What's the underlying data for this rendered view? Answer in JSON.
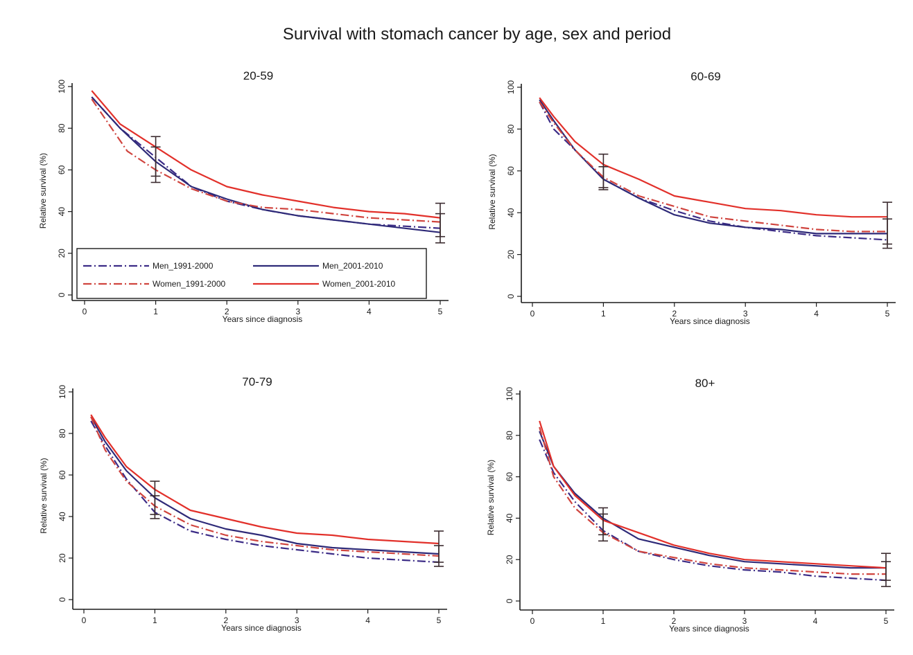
{
  "title": "Survival with stomach cancer by age, sex and period",
  "colors": {
    "men_1991_2000": "#3b2b86",
    "men_2001_2010": "#2e2a78",
    "women_1991_2000": "#d0443e",
    "women_2001_2010": "#e2302a",
    "axis": "#1a1a1a",
    "errorbar": "#3a2a2e"
  },
  "legend": [
    {
      "label": "Men_1991-2000",
      "series": "men_1991_2000",
      "dash": "dashdot"
    },
    {
      "label": "Men_2001-2010",
      "series": "men_2001_2010",
      "dash": "solid"
    },
    {
      "label": "Women_1991-2000",
      "series": "women_1991_2000",
      "dash": "dashdot"
    },
    {
      "label": "Women_2001-2010",
      "series": "women_2001_2010",
      "dash": "solid"
    }
  ],
  "chart_data": [
    {
      "type": "line",
      "title": "20-59",
      "xlabel": "Years since diagnosis",
      "ylabel": "Relative survival (%)",
      "xlim": [
        0,
        5
      ],
      "ylim": [
        0,
        100
      ],
      "xticks": [
        0,
        1,
        2,
        3,
        4,
        5
      ],
      "yticks": [
        0,
        20,
        40,
        60,
        80,
        100
      ],
      "legend_position": "bottom-left",
      "series": [
        {
          "name": "Men_1991-2000",
          "key": "men_1991_2000",
          "x": [
            0.1,
            0.5,
            1,
            1.5,
            2,
            2.5,
            3,
            3.5,
            4,
            4.5,
            5
          ],
          "y": [
            95,
            80,
            66,
            52,
            45,
            41,
            38,
            36,
            34,
            33,
            32
          ]
        },
        {
          "name": "Men_2001-2010",
          "key": "men_2001_2010",
          "x": [
            0.1,
            0.5,
            1,
            1.5,
            2,
            2.5,
            3,
            3.5,
            4,
            4.5,
            5
          ],
          "y": [
            95,
            80,
            64,
            52,
            46,
            41,
            38,
            36,
            34,
            32,
            30
          ]
        },
        {
          "name": "Women_1991-2000",
          "key": "women_1991_2000",
          "x": [
            0.1,
            0.6,
            1,
            1.5,
            2,
            2.5,
            3,
            3.5,
            4,
            4.5,
            5
          ],
          "y": [
            94,
            69,
            60,
            51,
            45,
            42,
            41,
            39,
            37,
            36,
            35
          ]
        },
        {
          "name": "Women_2001-2010",
          "key": "women_2001_2010",
          "x": [
            0.1,
            0.5,
            1,
            1.5,
            2,
            2.5,
            3,
            3.5,
            4,
            4.5,
            5
          ],
          "y": [
            98,
            82,
            71,
            60,
            52,
            48,
            45,
            42,
            40,
            39,
            37
          ]
        }
      ],
      "error_bars": [
        {
          "x": 1,
          "low": 54,
          "high": 76
        },
        {
          "x": 1,
          "low": 57,
          "high": 71
        },
        {
          "x": 5,
          "low": 25,
          "high": 44
        },
        {
          "x": 5,
          "low": 28,
          "high": 39
        }
      ]
    },
    {
      "type": "line",
      "title": "60-69",
      "xlabel": "Years since diagnosis",
      "ylabel": "Relative survival (%)",
      "xlim": [
        0,
        5
      ],
      "ylim": [
        0,
        100
      ],
      "xticks": [
        0,
        1,
        2,
        3,
        4,
        5
      ],
      "yticks": [
        0,
        20,
        40,
        60,
        80,
        100
      ],
      "series": [
        {
          "name": "Men_1991-2000",
          "key": "men_1991_2000",
          "x": [
            0.1,
            0.3,
            0.6,
            1,
            1.5,
            2,
            2.5,
            3,
            3.5,
            4,
            4.5,
            5
          ],
          "y": [
            93,
            80,
            70,
            56,
            47,
            41,
            36,
            33,
            31,
            29,
            28,
            27
          ]
        },
        {
          "name": "Men_2001-2010",
          "key": "men_2001_2010",
          "x": [
            0.1,
            0.3,
            0.6,
            1,
            1.5,
            2,
            2.5,
            3,
            3.5,
            4,
            4.5,
            5
          ],
          "y": [
            94,
            84,
            70,
            56,
            47,
            39,
            35,
            33,
            32,
            30,
            30,
            30
          ]
        },
        {
          "name": "Women_1991-2000",
          "key": "women_1991_2000",
          "x": [
            0.1,
            0.3,
            0.6,
            1,
            1.5,
            2,
            2.5,
            3,
            3.5,
            4,
            4.5,
            5
          ],
          "y": [
            93,
            83,
            70,
            57,
            48,
            43,
            38,
            36,
            34,
            32,
            31,
            31
          ]
        },
        {
          "name": "Women_2001-2010",
          "key": "women_2001_2010",
          "x": [
            0.1,
            0.3,
            0.6,
            1,
            1.5,
            2,
            2.5,
            3,
            3.5,
            4,
            4.5,
            5
          ],
          "y": [
            95,
            86,
            74,
            63,
            56,
            48,
            45,
            42,
            41,
            39,
            38,
            38
          ]
        }
      ],
      "error_bars": [
        {
          "x": 1,
          "low": 51,
          "high": 68
        },
        {
          "x": 1,
          "low": 52,
          "high": 62
        },
        {
          "x": 5,
          "low": 23,
          "high": 45
        },
        {
          "x": 5,
          "low": 25,
          "high": 37
        }
      ]
    },
    {
      "type": "line",
      "title": "70-79",
      "xlabel": "Years since diagnosis",
      "ylabel": "Relative survival (%)",
      "xlim": [
        0,
        5
      ],
      "ylim": [
        0,
        100
      ],
      "xticks": [
        0,
        1,
        2,
        3,
        4,
        5
      ],
      "yticks": [
        0,
        20,
        40,
        60,
        80,
        100
      ],
      "series": [
        {
          "name": "Men_1991-2000",
          "key": "men_1991_2000",
          "x": [
            0.1,
            0.3,
            0.6,
            1,
            1.5,
            2,
            2.5,
            3,
            3.5,
            4,
            4.5,
            5
          ],
          "y": [
            86,
            74,
            58,
            42,
            33,
            29,
            26,
            24,
            22,
            20,
            19,
            18
          ]
        },
        {
          "name": "Men_2001-2010",
          "key": "men_2001_2010",
          "x": [
            0.1,
            0.3,
            0.6,
            1,
            1.5,
            2,
            2.5,
            3,
            3.5,
            4,
            4.5,
            5
          ],
          "y": [
            88,
            76,
            62,
            49,
            39,
            34,
            31,
            27,
            25,
            24,
            23,
            22
          ]
        },
        {
          "name": "Women_1991-2000",
          "key": "women_1991_2000",
          "x": [
            0.1,
            0.3,
            0.6,
            1,
            1.5,
            2,
            2.5,
            3,
            3.5,
            4,
            4.5,
            5
          ],
          "y": [
            88,
            72,
            57,
            45,
            36,
            31,
            28,
            26,
            24,
            23,
            22,
            21
          ]
        },
        {
          "name": "Women_2001-2010",
          "key": "women_2001_2010",
          "x": [
            0.1,
            0.3,
            0.6,
            1,
            1.5,
            2,
            2.5,
            3,
            3.5,
            4,
            4.5,
            5
          ],
          "y": [
            89,
            78,
            64,
            53,
            43,
            39,
            35,
            32,
            31,
            29,
            28,
            27
          ]
        }
      ],
      "error_bars": [
        {
          "x": 1,
          "low": 39,
          "high": 57
        },
        {
          "x": 1,
          "low": 41,
          "high": 50
        },
        {
          "x": 5,
          "low": 16,
          "high": 33
        },
        {
          "x": 5,
          "low": 18,
          "high": 26
        }
      ]
    },
    {
      "type": "line",
      "title": "80+",
      "xlabel": "Years since diagnosis",
      "ylabel": "Relative survival (%)",
      "xlim": [
        0,
        5
      ],
      "ylim": [
        0,
        100
      ],
      "xticks": [
        0,
        1,
        2,
        3,
        4,
        5
      ],
      "yticks": [
        0,
        20,
        40,
        60,
        80,
        100
      ],
      "series": [
        {
          "name": "Men_1991-2000",
          "key": "men_1991_2000",
          "x": [
            0.1,
            0.3,
            0.6,
            1,
            1.5,
            2,
            2.5,
            3,
            3.5,
            4,
            4.5,
            5
          ],
          "y": [
            78,
            62,
            48,
            34,
            24,
            20,
            17,
            15,
            14,
            12,
            11,
            10
          ]
        },
        {
          "name": "Men_2001-2010",
          "key": "men_2001_2010",
          "x": [
            0.1,
            0.3,
            0.6,
            1,
            1.5,
            2,
            2.5,
            3,
            3.5,
            4,
            4.5,
            5
          ],
          "y": [
            82,
            65,
            52,
            40,
            30,
            26,
            22,
            19,
            18,
            17,
            16,
            16
          ]
        },
        {
          "name": "Women_1991-2000",
          "key": "women_1991_2000",
          "x": [
            0.1,
            0.3,
            0.6,
            1,
            1.5,
            2,
            2.5,
            3,
            3.5,
            4,
            4.5,
            5
          ],
          "y": [
            84,
            60,
            45,
            33,
            24,
            21,
            18,
            16,
            15,
            14,
            13,
            13
          ]
        },
        {
          "name": "Women_2001-2010",
          "key": "women_2001_2010",
          "x": [
            0.1,
            0.3,
            0.6,
            1,
            1.5,
            2,
            2.5,
            3,
            3.5,
            4,
            4.5,
            5
          ],
          "y": [
            87,
            65,
            51,
            39,
            33,
            27,
            23,
            20,
            19,
            18,
            17,
            16
          ]
        }
      ],
      "error_bars": [
        {
          "x": 1,
          "low": 29,
          "high": 45
        },
        {
          "x": 1,
          "low": 32,
          "high": 42
        },
        {
          "x": 5,
          "low": 7,
          "high": 23
        },
        {
          "x": 5,
          "low": 10,
          "high": 19
        }
      ]
    }
  ]
}
